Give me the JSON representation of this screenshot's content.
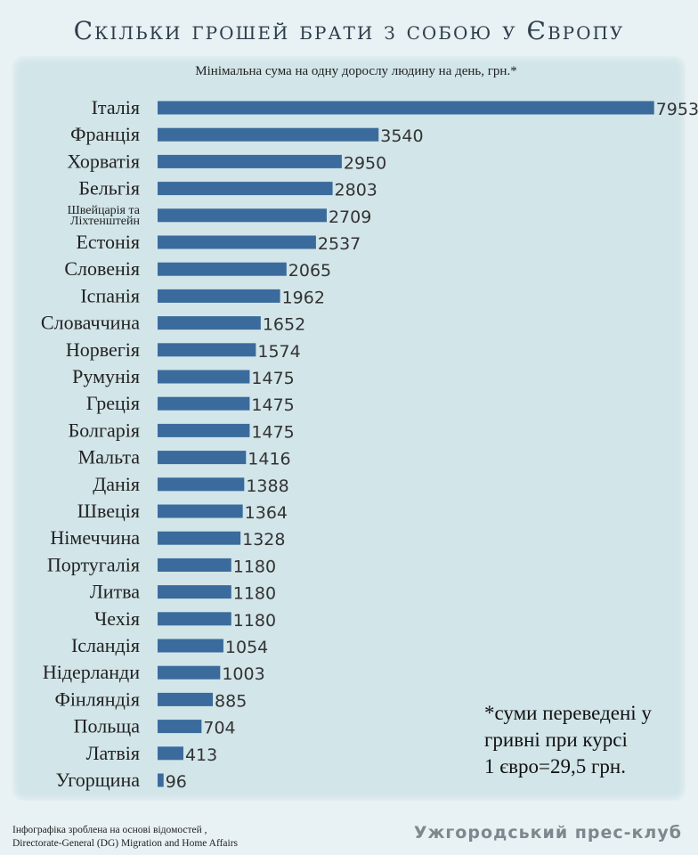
{
  "title": "Скільки грошей брати з собою у Європу",
  "subtitle": "Мінімальна сума на одну дорослу людину на день, грн.*",
  "note_lines": [
    "*суми переведені у",
    "гривні при курсі",
    "1 євро=29,5 грн."
  ],
  "source_lines": [
    "Інфографіка зроблена на основі відомостей ,",
    "Directorate-General (DG) Migration and Home Affairs"
  ],
  "brand": "Ужгородський прес-клуб",
  "colors": {
    "bar": "#3a6b9c",
    "panel": "#d2e5e9"
  },
  "chart_data": {
    "type": "bar",
    "orientation": "horizontal",
    "categories": [
      "Італія",
      "Франція",
      "Хорватія",
      "Бельгія",
      "Швейцарія та Ліхтенштейн",
      "Естонія",
      "Словенія",
      "Іспанія",
      "Словаччина",
      "Норвегія",
      "Румунія",
      "Греція",
      "Болгарія",
      "Мальта",
      "Данія",
      "Швеція",
      "Німеччина",
      "Португалія",
      "Литва",
      "Чехія",
      "Ісландія",
      "Нідерланди",
      "Фінляндія",
      "Польща",
      "Латвія",
      "Угорщина"
    ],
    "values": [
      7953,
      3540,
      2950,
      2803,
      2709,
      2537,
      2065,
      1962,
      1652,
      1574,
      1475,
      1475,
      1475,
      1416,
      1388,
      1364,
      1328,
      1180,
      1180,
      1180,
      1054,
      1003,
      885,
      704,
      413,
      96
    ],
    "xlim": [
      0,
      8000
    ],
    "grid": false,
    "legend": "none"
  }
}
